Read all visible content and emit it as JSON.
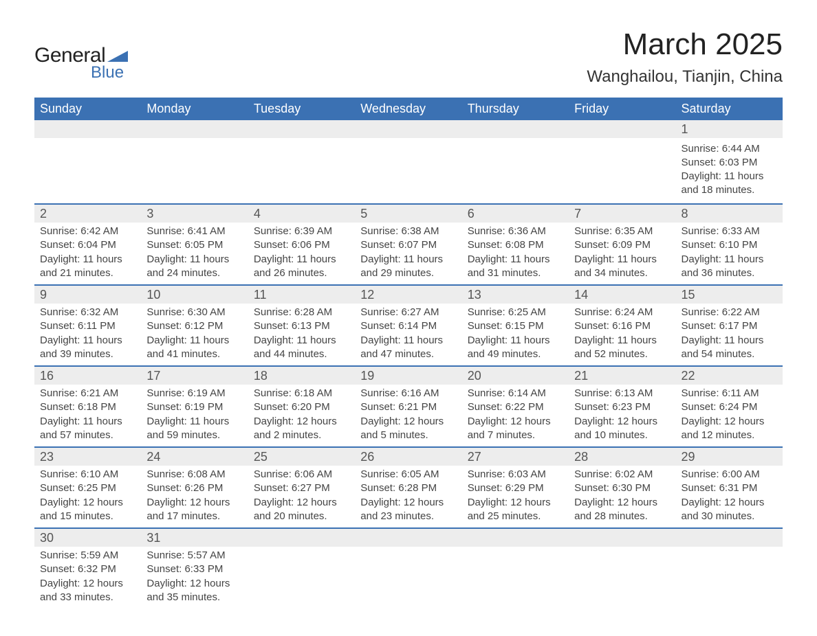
{
  "logo": {
    "word1": "General",
    "word2": "Blue",
    "icon_color": "#3b71b3"
  },
  "title": "March 2025",
  "location": "Wanghailou, Tianjin, China",
  "colors": {
    "header_bg": "#3b71b3",
    "header_text": "#ffffff",
    "daynum_bg": "#ededed",
    "row_border": "#3b71b3",
    "body_text": "#444444"
  },
  "fonts": {
    "title_pt": 44,
    "location_pt": 24,
    "header_pt": 18,
    "daynum_pt": 18,
    "detail_pt": 15
  },
  "day_headers": [
    "Sunday",
    "Monday",
    "Tuesday",
    "Wednesday",
    "Thursday",
    "Friday",
    "Saturday"
  ],
  "weeks": [
    [
      null,
      null,
      null,
      null,
      null,
      null,
      {
        "n": "1",
        "sunrise": "Sunrise: 6:44 AM",
        "sunset": "Sunset: 6:03 PM",
        "daylight": "Daylight: 11 hours and 18 minutes."
      }
    ],
    [
      {
        "n": "2",
        "sunrise": "Sunrise: 6:42 AM",
        "sunset": "Sunset: 6:04 PM",
        "daylight": "Daylight: 11 hours and 21 minutes."
      },
      {
        "n": "3",
        "sunrise": "Sunrise: 6:41 AM",
        "sunset": "Sunset: 6:05 PM",
        "daylight": "Daylight: 11 hours and 24 minutes."
      },
      {
        "n": "4",
        "sunrise": "Sunrise: 6:39 AM",
        "sunset": "Sunset: 6:06 PM",
        "daylight": "Daylight: 11 hours and 26 minutes."
      },
      {
        "n": "5",
        "sunrise": "Sunrise: 6:38 AM",
        "sunset": "Sunset: 6:07 PM",
        "daylight": "Daylight: 11 hours and 29 minutes."
      },
      {
        "n": "6",
        "sunrise": "Sunrise: 6:36 AM",
        "sunset": "Sunset: 6:08 PM",
        "daylight": "Daylight: 11 hours and 31 minutes."
      },
      {
        "n": "7",
        "sunrise": "Sunrise: 6:35 AM",
        "sunset": "Sunset: 6:09 PM",
        "daylight": "Daylight: 11 hours and 34 minutes."
      },
      {
        "n": "8",
        "sunrise": "Sunrise: 6:33 AM",
        "sunset": "Sunset: 6:10 PM",
        "daylight": "Daylight: 11 hours and 36 minutes."
      }
    ],
    [
      {
        "n": "9",
        "sunrise": "Sunrise: 6:32 AM",
        "sunset": "Sunset: 6:11 PM",
        "daylight": "Daylight: 11 hours and 39 minutes."
      },
      {
        "n": "10",
        "sunrise": "Sunrise: 6:30 AM",
        "sunset": "Sunset: 6:12 PM",
        "daylight": "Daylight: 11 hours and 41 minutes."
      },
      {
        "n": "11",
        "sunrise": "Sunrise: 6:28 AM",
        "sunset": "Sunset: 6:13 PM",
        "daylight": "Daylight: 11 hours and 44 minutes."
      },
      {
        "n": "12",
        "sunrise": "Sunrise: 6:27 AM",
        "sunset": "Sunset: 6:14 PM",
        "daylight": "Daylight: 11 hours and 47 minutes."
      },
      {
        "n": "13",
        "sunrise": "Sunrise: 6:25 AM",
        "sunset": "Sunset: 6:15 PM",
        "daylight": "Daylight: 11 hours and 49 minutes."
      },
      {
        "n": "14",
        "sunrise": "Sunrise: 6:24 AM",
        "sunset": "Sunset: 6:16 PM",
        "daylight": "Daylight: 11 hours and 52 minutes."
      },
      {
        "n": "15",
        "sunrise": "Sunrise: 6:22 AM",
        "sunset": "Sunset: 6:17 PM",
        "daylight": "Daylight: 11 hours and 54 minutes."
      }
    ],
    [
      {
        "n": "16",
        "sunrise": "Sunrise: 6:21 AM",
        "sunset": "Sunset: 6:18 PM",
        "daylight": "Daylight: 11 hours and 57 minutes."
      },
      {
        "n": "17",
        "sunrise": "Sunrise: 6:19 AM",
        "sunset": "Sunset: 6:19 PM",
        "daylight": "Daylight: 11 hours and 59 minutes."
      },
      {
        "n": "18",
        "sunrise": "Sunrise: 6:18 AM",
        "sunset": "Sunset: 6:20 PM",
        "daylight": "Daylight: 12 hours and 2 minutes."
      },
      {
        "n": "19",
        "sunrise": "Sunrise: 6:16 AM",
        "sunset": "Sunset: 6:21 PM",
        "daylight": "Daylight: 12 hours and 5 minutes."
      },
      {
        "n": "20",
        "sunrise": "Sunrise: 6:14 AM",
        "sunset": "Sunset: 6:22 PM",
        "daylight": "Daylight: 12 hours and 7 minutes."
      },
      {
        "n": "21",
        "sunrise": "Sunrise: 6:13 AM",
        "sunset": "Sunset: 6:23 PM",
        "daylight": "Daylight: 12 hours and 10 minutes."
      },
      {
        "n": "22",
        "sunrise": "Sunrise: 6:11 AM",
        "sunset": "Sunset: 6:24 PM",
        "daylight": "Daylight: 12 hours and 12 minutes."
      }
    ],
    [
      {
        "n": "23",
        "sunrise": "Sunrise: 6:10 AM",
        "sunset": "Sunset: 6:25 PM",
        "daylight": "Daylight: 12 hours and 15 minutes."
      },
      {
        "n": "24",
        "sunrise": "Sunrise: 6:08 AM",
        "sunset": "Sunset: 6:26 PM",
        "daylight": "Daylight: 12 hours and 17 minutes."
      },
      {
        "n": "25",
        "sunrise": "Sunrise: 6:06 AM",
        "sunset": "Sunset: 6:27 PM",
        "daylight": "Daylight: 12 hours and 20 minutes."
      },
      {
        "n": "26",
        "sunrise": "Sunrise: 6:05 AM",
        "sunset": "Sunset: 6:28 PM",
        "daylight": "Daylight: 12 hours and 23 minutes."
      },
      {
        "n": "27",
        "sunrise": "Sunrise: 6:03 AM",
        "sunset": "Sunset: 6:29 PM",
        "daylight": "Daylight: 12 hours and 25 minutes."
      },
      {
        "n": "28",
        "sunrise": "Sunrise: 6:02 AM",
        "sunset": "Sunset: 6:30 PM",
        "daylight": "Daylight: 12 hours and 28 minutes."
      },
      {
        "n": "29",
        "sunrise": "Sunrise: 6:00 AM",
        "sunset": "Sunset: 6:31 PM",
        "daylight": "Daylight: 12 hours and 30 minutes."
      }
    ],
    [
      {
        "n": "30",
        "sunrise": "Sunrise: 5:59 AM",
        "sunset": "Sunset: 6:32 PM",
        "daylight": "Daylight: 12 hours and 33 minutes."
      },
      {
        "n": "31",
        "sunrise": "Sunrise: 5:57 AM",
        "sunset": "Sunset: 6:33 PM",
        "daylight": "Daylight: 12 hours and 35 minutes."
      },
      null,
      null,
      null,
      null,
      null
    ]
  ]
}
